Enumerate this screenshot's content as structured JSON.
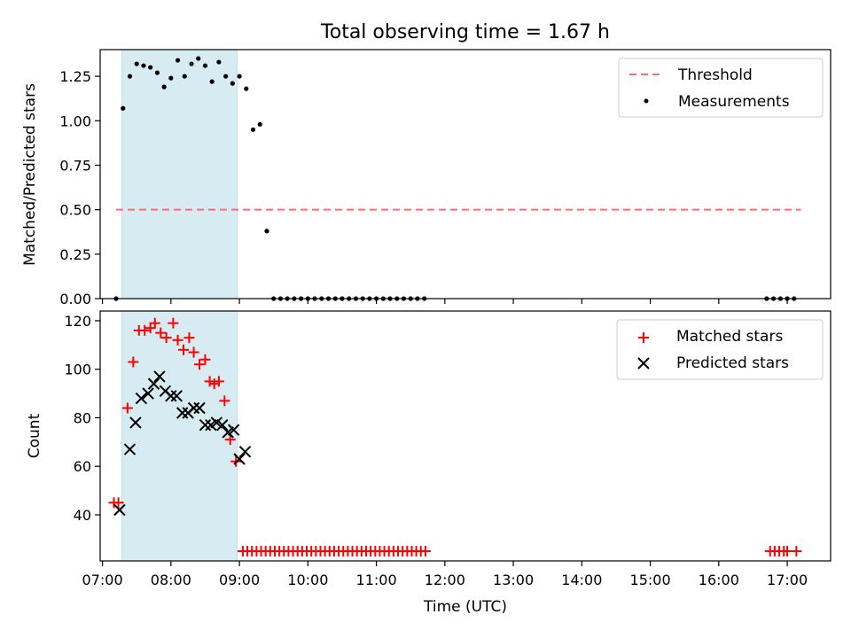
{
  "title": "Total observing time = 1.67 h",
  "chart_data": [
    {
      "type": "scatter",
      "panel": "top",
      "ylabel": "Matched/Predicted stars",
      "ylim": [
        0,
        1.4
      ],
      "yticks": [
        0.0,
        0.25,
        0.5,
        0.75,
        1.0,
        1.25
      ],
      "ytick_labels": [
        "0.00",
        "0.25",
        "0.50",
        "0.75",
        "1.00",
        "1.25"
      ],
      "xlim": [
        "06:58",
        "17:38"
      ],
      "shaded_interval": [
        "07:17",
        "08:58"
      ],
      "shade_color": "#add8e6",
      "legend_position": "upper right",
      "legend": [
        {
          "label": "Threshold",
          "kind": "dashed-line",
          "color": "#ff6b6b"
        },
        {
          "label": "Measurements",
          "kind": "dot",
          "color": "#000000"
        }
      ],
      "threshold": {
        "name": "Threshold",
        "value": 0.5,
        "x_start": "07:12",
        "x_end": "17:12",
        "color": "#ff6b6b"
      },
      "series": [
        {
          "name": "Measurements",
          "color": "#000000",
          "points": [
            [
              "07:12",
              0.0
            ],
            [
              "07:18",
              1.07
            ],
            [
              "07:24",
              1.25
            ],
            [
              "07:30",
              1.32
            ],
            [
              "07:36",
              1.31
            ],
            [
              "07:42",
              1.3
            ],
            [
              "07:48",
              1.27
            ],
            [
              "07:54",
              1.19
            ],
            [
              "08:00",
              1.24
            ],
            [
              "08:06",
              1.34
            ],
            [
              "08:12",
              1.25
            ],
            [
              "08:18",
              1.32
            ],
            [
              "08:24",
              1.35
            ],
            [
              "08:30",
              1.31
            ],
            [
              "08:36",
              1.22
            ],
            [
              "08:42",
              1.33
            ],
            [
              "08:48",
              1.25
            ],
            [
              "08:54",
              1.21
            ],
            [
              "09:00",
              1.25
            ],
            [
              "09:06",
              1.18
            ],
            [
              "09:12",
              0.95
            ],
            [
              "09:18",
              0.98
            ],
            [
              "09:24",
              0.38
            ],
            [
              "09:30",
              0.0
            ],
            [
              "09:36",
              0.0
            ],
            [
              "09:42",
              0.0
            ],
            [
              "09:48",
              0.0
            ],
            [
              "09:54",
              0.0
            ],
            [
              "10:00",
              0.0
            ],
            [
              "10:06",
              0.0
            ],
            [
              "10:12",
              0.0
            ],
            [
              "10:18",
              0.0
            ],
            [
              "10:24",
              0.0
            ],
            [
              "10:30",
              0.0
            ],
            [
              "10:36",
              0.0
            ],
            [
              "10:42",
              0.0
            ],
            [
              "10:48",
              0.0
            ],
            [
              "10:54",
              0.0
            ],
            [
              "11:00",
              0.0
            ],
            [
              "11:06",
              0.0
            ],
            [
              "11:12",
              0.0
            ],
            [
              "11:18",
              0.0
            ],
            [
              "11:24",
              0.0
            ],
            [
              "11:30",
              0.0
            ],
            [
              "11:36",
              0.0
            ],
            [
              "11:42",
              0.0
            ],
            [
              "16:42",
              0.0
            ],
            [
              "16:48",
              0.0
            ],
            [
              "16:54",
              0.0
            ],
            [
              "17:00",
              0.0
            ],
            [
              "17:06",
              0.0
            ]
          ]
        }
      ]
    },
    {
      "type": "scatter",
      "panel": "bottom",
      "xlabel": "Time (UTC)",
      "ylabel": "Count",
      "ylim": [
        21,
        124
      ],
      "yticks": [
        40,
        60,
        80,
        100,
        120
      ],
      "xlim": [
        "06:58",
        "17:38"
      ],
      "xticks": [
        "07:00",
        "08:00",
        "09:00",
        "10:00",
        "11:00",
        "12:00",
        "13:00",
        "14:00",
        "15:00",
        "16:00",
        "17:00"
      ],
      "shaded_interval": [
        "07:17",
        "08:58"
      ],
      "shade_color": "#add8e6",
      "legend_position": "upper right",
      "legend": [
        {
          "label": "Matched stars",
          "marker": "+",
          "color": "#ff0000"
        },
        {
          "label": "Predicted stars",
          "marker": "x",
          "color": "#000000"
        }
      ],
      "series": [
        {
          "name": "Matched stars",
          "marker": "+",
          "color": "#ff0000",
          "points": [
            [
              "07:10",
              45
            ],
            [
              "07:14",
              45
            ],
            [
              "07:22",
              84
            ],
            [
              "07:27",
              103
            ],
            [
              "07:32",
              116
            ],
            [
              "07:37",
              116
            ],
            [
              "07:42",
              117
            ],
            [
              "07:46",
              119
            ],
            [
              "07:51",
              115
            ],
            [
              "07:56",
              113
            ],
            [
              "08:02",
              119
            ],
            [
              "08:06",
              112
            ],
            [
              "08:11",
              108
            ],
            [
              "08:16",
              113
            ],
            [
              "08:20",
              107
            ],
            [
              "08:25",
              102
            ],
            [
              "08:30",
              104
            ],
            [
              "08:34",
              95
            ],
            [
              "08:38",
              94
            ],
            [
              "08:42",
              95
            ],
            [
              "08:47",
              87
            ],
            [
              "08:52",
              71
            ],
            [
              "08:57",
              62
            ],
            [
              "09:03",
              25
            ],
            [
              "09:07",
              25
            ],
            [
              "09:11",
              25
            ],
            [
              "09:15",
              25
            ],
            [
              "09:19",
              25
            ],
            [
              "09:23",
              25
            ],
            [
              "09:27",
              25
            ],
            [
              "09:31",
              25
            ],
            [
              "09:35",
              25
            ],
            [
              "09:39",
              25
            ],
            [
              "09:43",
              25
            ],
            [
              "09:47",
              25
            ],
            [
              "09:51",
              25
            ],
            [
              "09:55",
              25
            ],
            [
              "09:59",
              25
            ],
            [
              "10:03",
              25
            ],
            [
              "10:07",
              25
            ],
            [
              "10:11",
              25
            ],
            [
              "10:15",
              25
            ],
            [
              "10:19",
              25
            ],
            [
              "10:23",
              25
            ],
            [
              "10:27",
              25
            ],
            [
              "10:31",
              25
            ],
            [
              "10:35",
              25
            ],
            [
              "10:39",
              25
            ],
            [
              "10:43",
              25
            ],
            [
              "10:47",
              25
            ],
            [
              "10:51",
              25
            ],
            [
              "10:55",
              25
            ],
            [
              "10:59",
              25
            ],
            [
              "11:03",
              25
            ],
            [
              "11:07",
              25
            ],
            [
              "11:11",
              25
            ],
            [
              "11:15",
              25
            ],
            [
              "11:19",
              25
            ],
            [
              "11:23",
              25
            ],
            [
              "11:27",
              25
            ],
            [
              "11:31",
              25
            ],
            [
              "11:35",
              25
            ],
            [
              "11:39",
              25
            ],
            [
              "11:43",
              25
            ],
            [
              "16:45",
              25
            ],
            [
              "16:49",
              25
            ],
            [
              "16:53",
              25
            ],
            [
              "16:57",
              25
            ],
            [
              "17:00",
              25
            ],
            [
              "17:08",
              25
            ]
          ]
        },
        {
          "name": "Predicted stars",
          "marker": "x",
          "color": "#000000",
          "points": [
            [
              "07:15",
              42
            ],
            [
              "07:24",
              67
            ],
            [
              "07:29",
              78
            ],
            [
              "07:34",
              88
            ],
            [
              "07:40",
              90
            ],
            [
              "07:45",
              94
            ],
            [
              "07:50",
              97
            ],
            [
              "07:55",
              91
            ],
            [
              "08:00",
              89
            ],
            [
              "08:05",
              89
            ],
            [
              "08:10",
              82
            ],
            [
              "08:15",
              82
            ],
            [
              "08:20",
              84
            ],
            [
              "08:25",
              84
            ],
            [
              "08:30",
              77
            ],
            [
              "08:35",
              77
            ],
            [
              "08:40",
              78
            ],
            [
              "08:45",
              77
            ],
            [
              "08:50",
              74
            ],
            [
              "08:55",
              75
            ],
            [
              "09:00",
              63
            ],
            [
              "09:05",
              66
            ]
          ]
        }
      ]
    }
  ]
}
